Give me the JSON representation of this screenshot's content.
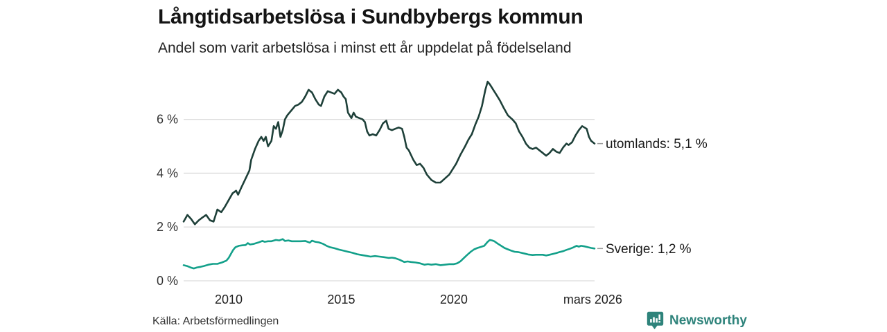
{
  "header": {
    "title": "Långtidsarbetslösa i Sundbybergs kommun",
    "subtitle": "Andel som varit arbetslösa i minst ett år uppdelat på födelseland"
  },
  "footer": {
    "source": "Källa: Arbetsförmedlingen",
    "logo_text": "Newsworthy"
  },
  "colors": {
    "grid": "#dcdcdc",
    "leader_dash": "#999999",
    "axis_text": "#333333",
    "label_text": "#1a1a1a",
    "brand_teal": "#2e837b",
    "series_utomlands": "#1e4039",
    "series_sverige": "#13a08a"
  },
  "chart_data": {
    "type": "line",
    "title": "Långtidsarbetslösa i Sundbybergs kommun",
    "subtitle": "Andel som varit arbetslösa i minst ett år uppdelat på födelseland",
    "xlabel": "",
    "ylabel": "",
    "x_unit": "decimal year (monthly share of long-term unemployed)",
    "xlim": [
      2008.0,
      2026.25
    ],
    "ylim": [
      0,
      7.6
    ],
    "grid": "horizontal-only",
    "legend_position": "end-of-line-labels",
    "y_axis": {
      "ticks": [
        {
          "value": 0,
          "label": "0 %"
        },
        {
          "value": 2,
          "label": "2 %"
        },
        {
          "value": 4,
          "label": "4 %"
        },
        {
          "value": 6,
          "label": "6 %"
        }
      ]
    },
    "x_axis": {
      "ticks": [
        {
          "value": 2010,
          "label": "2010"
        },
        {
          "value": 2015,
          "label": "2015"
        },
        {
          "value": 2020,
          "label": "2020"
        },
        {
          "value": 2026.17,
          "label": "mars 2026"
        }
      ]
    },
    "series": [
      {
        "name": "utomlands",
        "end_label": "utomlands: 5,1 %",
        "last_value_label": "5,1 %",
        "color": "#1e4039",
        "points": [
          [
            2008.0,
            2.2
          ],
          [
            2008.17,
            2.45
          ],
          [
            2008.33,
            2.3
          ],
          [
            2008.5,
            2.1
          ],
          [
            2008.67,
            2.25
          ],
          [
            2008.83,
            2.35
          ],
          [
            2009.0,
            2.45
          ],
          [
            2009.17,
            2.25
          ],
          [
            2009.33,
            2.2
          ],
          [
            2009.5,
            2.65
          ],
          [
            2009.67,
            2.55
          ],
          [
            2009.83,
            2.75
          ],
          [
            2010.0,
            3.0
          ],
          [
            2010.17,
            3.25
          ],
          [
            2010.33,
            3.35
          ],
          [
            2010.42,
            3.2
          ],
          [
            2010.58,
            3.5
          ],
          [
            2010.75,
            3.8
          ],
          [
            2010.92,
            4.1
          ],
          [
            2011.0,
            4.5
          ],
          [
            2011.17,
            4.9
          ],
          [
            2011.33,
            5.2
          ],
          [
            2011.45,
            5.35
          ],
          [
            2011.55,
            5.2
          ],
          [
            2011.65,
            5.35
          ],
          [
            2011.75,
            5.0
          ],
          [
            2011.9,
            5.2
          ],
          [
            2012.0,
            5.75
          ],
          [
            2012.1,
            5.65
          ],
          [
            2012.2,
            5.9
          ],
          [
            2012.3,
            5.35
          ],
          [
            2012.4,
            5.6
          ],
          [
            2012.5,
            6.0
          ],
          [
            2012.6,
            6.15
          ],
          [
            2012.7,
            6.25
          ],
          [
            2012.8,
            6.35
          ],
          [
            2012.95,
            6.5
          ],
          [
            2013.1,
            6.55
          ],
          [
            2013.25,
            6.65
          ],
          [
            2013.4,
            6.85
          ],
          [
            2013.55,
            7.1
          ],
          [
            2013.7,
            7.0
          ],
          [
            2013.85,
            6.75
          ],
          [
            2014.0,
            6.55
          ],
          [
            2014.1,
            6.5
          ],
          [
            2014.25,
            6.85
          ],
          [
            2014.4,
            7.05
          ],
          [
            2014.55,
            7.0
          ],
          [
            2014.7,
            6.95
          ],
          [
            2014.85,
            7.1
          ],
          [
            2015.0,
            7.0
          ],
          [
            2015.1,
            6.85
          ],
          [
            2015.2,
            6.75
          ],
          [
            2015.3,
            6.25
          ],
          [
            2015.45,
            6.05
          ],
          [
            2015.55,
            6.25
          ],
          [
            2015.65,
            6.1
          ],
          [
            2015.8,
            6.05
          ],
          [
            2015.95,
            6.0
          ],
          [
            2016.05,
            5.9
          ],
          [
            2016.15,
            5.55
          ],
          [
            2016.25,
            5.4
          ],
          [
            2016.4,
            5.45
          ],
          [
            2016.55,
            5.4
          ],
          [
            2016.7,
            5.6
          ],
          [
            2016.85,
            5.85
          ],
          [
            2017.0,
            5.95
          ],
          [
            2017.1,
            5.65
          ],
          [
            2017.25,
            5.6
          ],
          [
            2017.4,
            5.65
          ],
          [
            2017.55,
            5.7
          ],
          [
            2017.7,
            5.65
          ],
          [
            2017.8,
            5.35
          ],
          [
            2017.9,
            4.95
          ],
          [
            2018.0,
            4.85
          ],
          [
            2018.2,
            4.5
          ],
          [
            2018.35,
            4.3
          ],
          [
            2018.5,
            4.35
          ],
          [
            2018.65,
            4.2
          ],
          [
            2018.8,
            3.95
          ],
          [
            2019.0,
            3.75
          ],
          [
            2019.2,
            3.65
          ],
          [
            2019.4,
            3.65
          ],
          [
            2019.6,
            3.8
          ],
          [
            2019.8,
            3.95
          ],
          [
            2019.95,
            4.15
          ],
          [
            2020.1,
            4.35
          ],
          [
            2020.3,
            4.7
          ],
          [
            2020.5,
            5.0
          ],
          [
            2020.65,
            5.25
          ],
          [
            2020.8,
            5.45
          ],
          [
            2020.95,
            5.8
          ],
          [
            2021.1,
            6.1
          ],
          [
            2021.25,
            6.5
          ],
          [
            2021.4,
            7.1
          ],
          [
            2021.5,
            7.4
          ],
          [
            2021.6,
            7.3
          ],
          [
            2021.75,
            7.1
          ],
          [
            2021.9,
            6.9
          ],
          [
            2022.05,
            6.7
          ],
          [
            2022.2,
            6.45
          ],
          [
            2022.4,
            6.15
          ],
          [
            2022.6,
            6.0
          ],
          [
            2022.75,
            5.85
          ],
          [
            2022.9,
            5.55
          ],
          [
            2023.05,
            5.35
          ],
          [
            2023.2,
            5.1
          ],
          [
            2023.35,
            4.95
          ],
          [
            2023.5,
            4.9
          ],
          [
            2023.65,
            4.95
          ],
          [
            2023.8,
            4.85
          ],
          [
            2023.95,
            4.75
          ],
          [
            2024.1,
            4.65
          ],
          [
            2024.25,
            4.75
          ],
          [
            2024.4,
            4.9
          ],
          [
            2024.55,
            4.8
          ],
          [
            2024.7,
            4.75
          ],
          [
            2024.85,
            4.95
          ],
          [
            2025.0,
            5.1
          ],
          [
            2025.1,
            5.05
          ],
          [
            2025.25,
            5.15
          ],
          [
            2025.4,
            5.4
          ],
          [
            2025.55,
            5.6
          ],
          [
            2025.7,
            5.75
          ],
          [
            2025.8,
            5.7
          ],
          [
            2025.9,
            5.65
          ],
          [
            2026.0,
            5.35
          ],
          [
            2026.1,
            5.2
          ],
          [
            2026.25,
            5.1
          ]
        ]
      },
      {
        "name": "Sverige",
        "end_label": "Sverige: 1,2 %",
        "last_value_label": "1,2 %",
        "color": "#13a08a",
        "points": [
          [
            2008.0,
            0.58
          ],
          [
            2008.15,
            0.55
          ],
          [
            2008.3,
            0.5
          ],
          [
            2008.45,
            0.46
          ],
          [
            2008.6,
            0.5
          ],
          [
            2008.75,
            0.52
          ],
          [
            2008.9,
            0.55
          ],
          [
            2009.1,
            0.6
          ],
          [
            2009.3,
            0.63
          ],
          [
            2009.5,
            0.63
          ],
          [
            2009.7,
            0.68
          ],
          [
            2009.9,
            0.75
          ],
          [
            2010.0,
            0.85
          ],
          [
            2010.1,
            1.0
          ],
          [
            2010.2,
            1.15
          ],
          [
            2010.3,
            1.25
          ],
          [
            2010.45,
            1.3
          ],
          [
            2010.6,
            1.32
          ],
          [
            2010.75,
            1.33
          ],
          [
            2010.85,
            1.4
          ],
          [
            2010.95,
            1.35
          ],
          [
            2011.1,
            1.37
          ],
          [
            2011.3,
            1.42
          ],
          [
            2011.5,
            1.48
          ],
          [
            2011.6,
            1.45
          ],
          [
            2011.75,
            1.47
          ],
          [
            2011.9,
            1.47
          ],
          [
            2012.1,
            1.52
          ],
          [
            2012.25,
            1.5
          ],
          [
            2012.4,
            1.55
          ],
          [
            2012.5,
            1.48
          ],
          [
            2012.65,
            1.5
          ],
          [
            2012.8,
            1.47
          ],
          [
            2013.0,
            1.47
          ],
          [
            2013.2,
            1.47
          ],
          [
            2013.4,
            1.48
          ],
          [
            2013.6,
            1.42
          ],
          [
            2013.7,
            1.49
          ],
          [
            2013.85,
            1.45
          ],
          [
            2014.0,
            1.43
          ],
          [
            2014.2,
            1.37
          ],
          [
            2014.35,
            1.3
          ],
          [
            2014.5,
            1.25
          ],
          [
            2014.7,
            1.21
          ],
          [
            2014.9,
            1.16
          ],
          [
            2015.1,
            1.12
          ],
          [
            2015.3,
            1.08
          ],
          [
            2015.5,
            1.04
          ],
          [
            2015.7,
            0.99
          ],
          [
            2015.9,
            0.96
          ],
          [
            2016.1,
            0.93
          ],
          [
            2016.3,
            0.9
          ],
          [
            2016.5,
            0.92
          ],
          [
            2016.7,
            0.9
          ],
          [
            2016.9,
            0.88
          ],
          [
            2017.1,
            0.85
          ],
          [
            2017.25,
            0.86
          ],
          [
            2017.4,
            0.84
          ],
          [
            2017.6,
            0.78
          ],
          [
            2017.8,
            0.7
          ],
          [
            2017.95,
            0.72
          ],
          [
            2018.1,
            0.7
          ],
          [
            2018.3,
            0.68
          ],
          [
            2018.5,
            0.65
          ],
          [
            2018.7,
            0.6
          ],
          [
            2018.85,
            0.62
          ],
          [
            2019.0,
            0.6
          ],
          [
            2019.2,
            0.62
          ],
          [
            2019.4,
            0.58
          ],
          [
            2019.6,
            0.6
          ],
          [
            2019.8,
            0.62
          ],
          [
            2020.0,
            0.62
          ],
          [
            2020.15,
            0.65
          ],
          [
            2020.3,
            0.73
          ],
          [
            2020.45,
            0.85
          ],
          [
            2020.6,
            0.97
          ],
          [
            2020.75,
            1.08
          ],
          [
            2020.9,
            1.17
          ],
          [
            2021.05,
            1.22
          ],
          [
            2021.2,
            1.26
          ],
          [
            2021.35,
            1.3
          ],
          [
            2021.5,
            1.45
          ],
          [
            2021.6,
            1.52
          ],
          [
            2021.7,
            1.5
          ],
          [
            2021.8,
            1.47
          ],
          [
            2021.95,
            1.38
          ],
          [
            2022.1,
            1.3
          ],
          [
            2022.25,
            1.22
          ],
          [
            2022.4,
            1.17
          ],
          [
            2022.55,
            1.12
          ],
          [
            2022.7,
            1.08
          ],
          [
            2022.85,
            1.07
          ],
          [
            2023.0,
            1.04
          ],
          [
            2023.15,
            1.01
          ],
          [
            2023.3,
            0.98
          ],
          [
            2023.5,
            0.96
          ],
          [
            2023.65,
            0.97
          ],
          [
            2023.8,
            0.97
          ],
          [
            2023.95,
            0.97
          ],
          [
            2024.1,
            0.94
          ],
          [
            2024.25,
            0.97
          ],
          [
            2024.4,
            1.0
          ],
          [
            2024.55,
            1.03
          ],
          [
            2024.7,
            1.07
          ],
          [
            2024.85,
            1.1
          ],
          [
            2025.0,
            1.15
          ],
          [
            2025.15,
            1.19
          ],
          [
            2025.3,
            1.24
          ],
          [
            2025.45,
            1.3
          ],
          [
            2025.55,
            1.27
          ],
          [
            2025.65,
            1.3
          ],
          [
            2025.8,
            1.28
          ],
          [
            2025.95,
            1.25
          ],
          [
            2026.1,
            1.22
          ],
          [
            2026.25,
            1.2
          ]
        ]
      }
    ]
  }
}
